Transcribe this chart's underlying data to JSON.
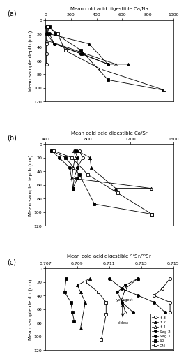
{
  "panels": [
    {
      "label": "(a)",
      "title": "Mean cold acid digestible Ca/Na",
      "ylabel": "Mean sample depth (cm)",
      "xlim": [
        0,
        1000
      ],
      "ylim": [
        120,
        0
      ],
      "xticks": [
        0,
        200,
        400,
        600,
        800,
        1000
      ],
      "yticks": [
        0,
        20,
        40,
        60,
        80,
        100,
        120
      ],
      "series": [
        {
          "name": "It3",
          "x": [
            10,
            10,
            8,
            8,
            8
          ],
          "y": [
            10,
            20,
            35,
            50,
            65
          ],
          "marker": "o",
          "filled": false,
          "color": "black"
        },
        {
          "name": "It2",
          "x": [
            15,
            20,
            340,
            490,
            650
          ],
          "y": [
            10,
            20,
            35,
            65,
            65
          ],
          "marker": "^",
          "filled": true,
          "color": "black"
        },
        {
          "name": "It1",
          "x": [
            12,
            12,
            10,
            550
          ],
          "y": [
            10,
            20,
            30,
            65
          ],
          "marker": "^",
          "filled": false,
          "color": "black"
        },
        {
          "name": "Sag2",
          "x": [
            20,
            30,
            70,
            280,
            490
          ],
          "y": [
            10,
            20,
            35,
            50,
            65
          ],
          "marker": "o",
          "filled": true,
          "color": "black"
        },
        {
          "name": "Sag1",
          "x": [
            8,
            8,
            70,
            290,
            490
          ],
          "y": [
            10,
            20,
            35,
            50,
            65
          ],
          "marker": "o",
          "filled": true,
          "color": "black"
        },
        {
          "name": "AR",
          "x": [
            30,
            80,
            280,
            490,
            920
          ],
          "y": [
            10,
            20,
            45,
            88,
            103
          ],
          "marker": "s",
          "filled": true,
          "color": "black"
        },
        {
          "name": "GM",
          "x": [
            18,
            95,
            155,
            430,
            930
          ],
          "y": [
            10,
            20,
            45,
            72,
            103
          ],
          "marker": "s",
          "filled": false,
          "color": "black"
        }
      ]
    },
    {
      "label": "(b)",
      "title": "Mean cold acid digestible Ca/Sr",
      "ylabel": "Mean sample depth (cm)",
      "xlim": [
        400,
        1600
      ],
      "ylim": [
        120,
        0
      ],
      "xticks": [
        400,
        800,
        1200,
        1600
      ],
      "yticks": [
        0,
        20,
        40,
        60,
        80,
        100,
        120
      ],
      "series": [
        {
          "name": "It3",
          "x": [
            720,
            750,
            700,
            670,
            660
          ],
          "y": [
            10,
            20,
            35,
            50,
            65
          ],
          "marker": "o",
          "filled": false,
          "color": "black"
        },
        {
          "name": "It2",
          "x": [
            700,
            820,
            830,
            1060,
            1390
          ],
          "y": [
            10,
            20,
            35,
            65,
            65
          ],
          "marker": "^",
          "filled": true,
          "color": "black"
        },
        {
          "name": "It1",
          "x": [
            670,
            680,
            660,
            650,
            1390
          ],
          "y": [
            10,
            20,
            35,
            50,
            65
          ],
          "marker": "^",
          "filled": false,
          "color": "black"
        },
        {
          "name": "Sag2",
          "x": [
            680,
            700,
            700,
            700,
            660
          ],
          "y": [
            10,
            20,
            35,
            50,
            65
          ],
          "marker": "o",
          "filled": true,
          "color": "black"
        },
        {
          "name": "Sag1",
          "x": [
            460,
            530,
            630,
            660,
            660
          ],
          "y": [
            10,
            20,
            35,
            65,
            65
          ],
          "marker": "o",
          "filled": true,
          "color": "black"
        },
        {
          "name": "AR",
          "x": [
            460,
            590,
            720,
            860,
            1400
          ],
          "y": [
            10,
            20,
            45,
            88,
            103
          ],
          "marker": "s",
          "filled": true,
          "color": "black"
        },
        {
          "name": "GM",
          "x": [
            480,
            650,
            800,
            1080,
            1400
          ],
          "y": [
            10,
            20,
            45,
            72,
            103
          ],
          "marker": "s",
          "filled": false,
          "color": "black"
        }
      ]
    },
    {
      "label": "(c)",
      "title": "Mean cold acid digestible $^{87}$Sr/$^{86}$Sr",
      "ylabel": "Mean sample depth (cm)",
      "xlim": [
        0.707,
        0.715
      ],
      "ylim": [
        120,
        0
      ],
      "xticks": [
        0.707,
        0.709,
        0.711,
        0.713,
        0.715
      ],
      "yticks": [
        0,
        20,
        40,
        60,
        80,
        100,
        120
      ],
      "series": [
        {
          "name": "It3",
          "x": [
            0.7148,
            0.7143,
            0.7138,
            0.7148,
            0.7148
          ],
          "y": [
            15,
            30,
            40,
            50,
            65
          ],
          "marker": "o",
          "filled": false,
          "color": "black"
        },
        {
          "name": "It2",
          "x": [
            0.7098,
            0.709,
            0.7092,
            0.7095,
            0.7092
          ],
          "y": [
            15,
            25,
            35,
            50,
            88
          ],
          "marker": "^",
          "filled": true,
          "color": "black"
        },
        {
          "name": "It1",
          "x": [
            0.7128,
            0.712,
            0.7118,
            0.712
          ],
          "y": [
            15,
            30,
            45,
            65
          ],
          "marker": "^",
          "filled": false,
          "color": "black"
        },
        {
          "name": "Sag2",
          "x": [
            0.7128,
            0.712,
            0.7115,
            0.7118,
            0.7125
          ],
          "y": [
            15,
            25,
            35,
            50,
            65
          ],
          "marker": "o",
          "filled": true,
          "color": "black"
        },
        {
          "name": "Sag1",
          "x": [
            0.711,
            0.7118,
            0.7128,
            0.7138,
            0.7145
          ],
          "y": [
            15,
            30,
            40,
            50,
            65
          ],
          "marker": "o",
          "filled": true,
          "color": "black"
        },
        {
          "name": "AR",
          "x": [
            0.7083,
            0.7082,
            0.7086,
            0.7087,
            0.7088
          ],
          "y": [
            15,
            35,
            50,
            65,
            78
          ],
          "marker": "s",
          "filled": true,
          "color": "black"
        },
        {
          "name": "GM",
          "x": [
            0.7095,
            0.7103,
            0.7108,
            0.7108,
            0.7105
          ],
          "y": [
            20,
            35,
            50,
            68,
            105
          ],
          "marker": "s",
          "filled": false,
          "color": "black"
        }
      ],
      "legend_entries": [
        "It 3",
        "It 2",
        "It 1",
        "Sag 2",
        "Sag 1",
        "AR",
        "GM"
      ],
      "legend_markers": [
        "o",
        "^",
        "^",
        "o",
        "o",
        "s",
        "s"
      ],
      "legend_filled": [
        false,
        true,
        false,
        true,
        true,
        true,
        false
      ],
      "legend_colors": [
        "black",
        "black",
        "black",
        "black",
        "black",
        "black",
        "black"
      ]
    }
  ]
}
